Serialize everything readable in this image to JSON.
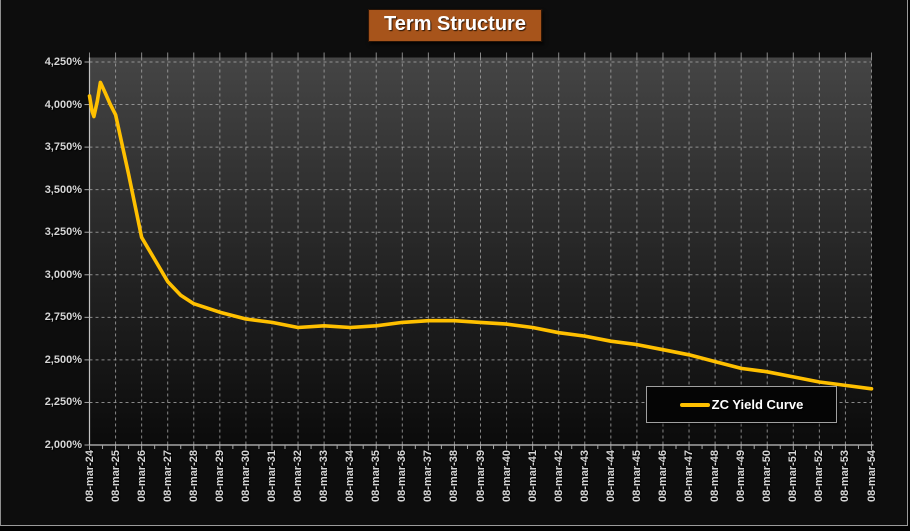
{
  "title": "Term Structure",
  "legend": {
    "label": "ZC Yield Curve"
  },
  "colors": {
    "page_background": "#0D0D0D",
    "title_background": "#A7541B",
    "title_text": "#FFFFFF",
    "line": "#FFC000",
    "grid": "#A6A6A6",
    "axis": "#C2C2C2",
    "tick": "#A6A6A6",
    "label_text": "#D6D6D6",
    "plot_gradient_top": "#454545",
    "plot_gradient_bottom": "#0B0B0B",
    "legend_background": "#050505",
    "legend_border": "#A0A0A0"
  },
  "y_axis": {
    "labels": [
      "4,250%",
      "4,000%",
      "3,750%",
      "3,500%",
      "3,250%",
      "3,000%",
      "2,750%",
      "2,500%",
      "2,250%",
      "2,000%"
    ],
    "step_pct": 0.25
  },
  "x_axis": {
    "labels": [
      "08-mar-24",
      "08-mar-25",
      "08-mar-26",
      "08-mar-27",
      "08-mar-28",
      "08-mar-29",
      "08-mar-30",
      "08-mar-31",
      "08-mar-32",
      "08-mar-33",
      "08-mar-34",
      "08-mar-35",
      "08-mar-36",
      "08-mar-37",
      "08-mar-38",
      "08-mar-39",
      "08-mar-40",
      "08-mar-41",
      "08-mar-42",
      "08-mar-43",
      "08-mar-44",
      "08-mar-45",
      "08-mar-46",
      "08-mar-47",
      "08-mar-48",
      "08-mar-49",
      "08-mar-50",
      "08-mar-51",
      "08-mar-52",
      "08-mar-53",
      "08-mar-54"
    ]
  },
  "chart_data": {
    "type": "line",
    "title": "Term Structure",
    "xlabel": "",
    "ylabel": "",
    "ylim": [
      2.0,
      4.25
    ],
    "y_step": 0.25,
    "y_format": "comma-decimal percent (e.g. 2,750% = 2.750%)",
    "x_range_years": [
      0,
      30
    ],
    "grid": "dashed both axes",
    "legend_position": "inside bottom-right",
    "x_tick_labels": [
      "08-mar-24",
      "08-mar-25",
      "08-mar-26",
      "08-mar-27",
      "08-mar-28",
      "08-mar-29",
      "08-mar-30",
      "08-mar-31",
      "08-mar-32",
      "08-mar-33",
      "08-mar-34",
      "08-mar-35",
      "08-mar-36",
      "08-mar-37",
      "08-mar-38",
      "08-mar-39",
      "08-mar-40",
      "08-mar-41",
      "08-mar-42",
      "08-mar-43",
      "08-mar-44",
      "08-mar-45",
      "08-mar-46",
      "08-mar-47",
      "08-mar-48",
      "08-mar-49",
      "08-mar-50",
      "08-mar-51",
      "08-mar-52",
      "08-mar-53",
      "08-mar-54"
    ],
    "series": [
      {
        "name": "ZC Yield Curve",
        "color": "#FFC000",
        "x_years_from_start": [
          0,
          0.1,
          0.17,
          0.3,
          0.42,
          0.6,
          0.8,
          1,
          1.5,
          2,
          2.5,
          3,
          3.5,
          4,
          5,
          6,
          7,
          8,
          9,
          10,
          11,
          12,
          13,
          14,
          15,
          16,
          17,
          18,
          19,
          20,
          21,
          22,
          23,
          24,
          25,
          26,
          27,
          28,
          29,
          30
        ],
        "values_pct": [
          4.05,
          3.96,
          3.93,
          4.02,
          4.13,
          4.07,
          4.0,
          3.94,
          3.59,
          3.22,
          3.09,
          2.96,
          2.88,
          2.83,
          2.78,
          2.74,
          2.72,
          2.69,
          2.7,
          2.69,
          2.7,
          2.72,
          2.73,
          2.73,
          2.72,
          2.71,
          2.69,
          2.66,
          2.64,
          2.61,
          2.59,
          2.56,
          2.53,
          2.49,
          2.45,
          2.43,
          2.4,
          2.37,
          2.35,
          2.33
        ]
      }
    ]
  }
}
